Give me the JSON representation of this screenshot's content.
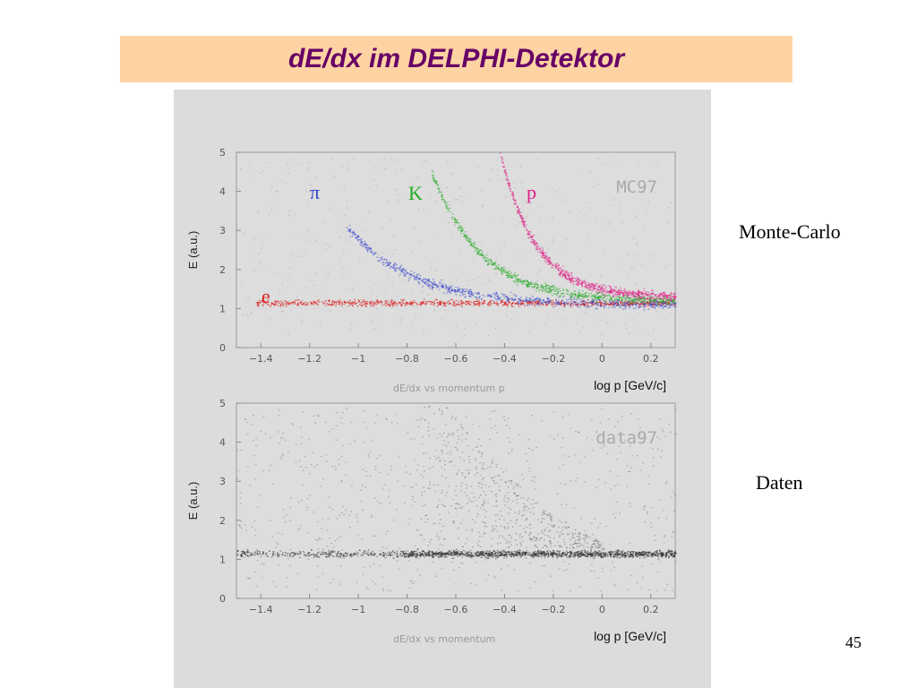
{
  "slide": {
    "title": "dE/dx im DELPHI-Detektor",
    "page_number": "45",
    "side_labels": {
      "mc": "Monte-Carlo",
      "data": "Daten"
    }
  },
  "colors": {
    "title_bg": "#fdd3a3",
    "title_text": "#660066",
    "panel_bg": "#dcdcdc",
    "pion": "#3344cc",
    "kaon": "#22aa22",
    "proton": "#dd2288",
    "electron": "#dd2222",
    "data_points": "#333333"
  },
  "chart_data": [
    {
      "type": "scatter",
      "ylabel": "E (a.u.)",
      "xlabel": "log p [GeV/c]",
      "caption": "dE/dx vs momentum p",
      "tag": "MC97",
      "xlim": [
        -1.5,
        0.3
      ],
      "ylim": [
        0,
        5
      ],
      "x_ticks": [
        -1.4,
        -1.2,
        -1.0,
        -0.8,
        -0.6,
        -0.4,
        -0.2,
        0,
        0.2
      ],
      "x_tick_labels": [
        "−1.4",
        "−1.2",
        "−1",
        "−0.8",
        "−0.6",
        "−0.4",
        "−0.2",
        "0",
        "0.2"
      ],
      "y_ticks": [
        0,
        1,
        2,
        3,
        4,
        5
      ],
      "y_tick_labels": [
        "0",
        "1",
        "2",
        "3",
        "4",
        "5"
      ],
      "series": [
        {
          "name": "e",
          "color": "#dd2222",
          "x_range": [
            -1.42,
            0.3
          ],
          "y_approx": 1.15
        },
        {
          "name": "π",
          "color": "#3344cc",
          "x_range": [
            -1.05,
            0.3
          ],
          "y_at_xmin": 3.1,
          "y_plateau": 1.1
        },
        {
          "name": "K",
          "color": "#22aa22",
          "x_range": [
            -0.7,
            0.3
          ],
          "y_at_xmin": 4.5,
          "y_plateau": 1.2
        },
        {
          "name": "p",
          "color": "#dd2288",
          "x_range": [
            -0.42,
            0.3
          ],
          "y_at_xmin": 5.0,
          "y_plateau": 1.3
        }
      ]
    },
    {
      "type": "scatter",
      "ylabel": "E (a.u.)",
      "xlabel": "log p [GeV/c]",
      "caption": "dE/dx vs momentum",
      "tag": "data97",
      "xlim": [
        -1.5,
        0.3
      ],
      "ylim": [
        0,
        5
      ],
      "x_ticks": [
        -1.4,
        -1.2,
        -1.0,
        -0.8,
        -0.6,
        -0.4,
        -0.2,
        0,
        0.2
      ],
      "x_tick_labels": [
        "−1.4",
        "−1.2",
        "−1",
        "−0.8",
        "−0.6",
        "−0.4",
        "−0.2",
        "0",
        "0.2"
      ],
      "y_ticks": [
        0,
        1,
        2,
        3,
        4,
        5
      ],
      "y_tick_labels": [
        "0",
        "1",
        "2",
        "3",
        "4",
        "5"
      ],
      "series": [
        {
          "name": "data",
          "color": "#333333",
          "x_range": [
            -1.5,
            0.3
          ],
          "y_plateau": 1.15
        }
      ]
    }
  ]
}
